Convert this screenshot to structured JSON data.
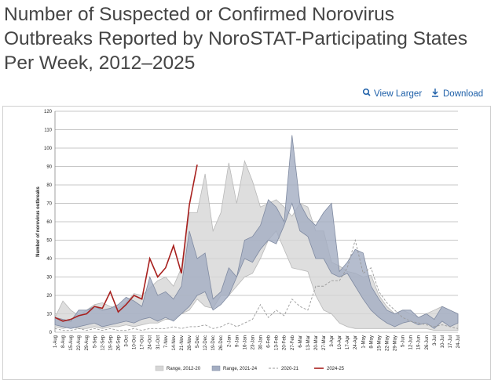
{
  "header": {
    "title": [
      "Number of Suspected or Confirmed Norovirus",
      "Outbreaks Reported by NoroSTAT-Participating States",
      "Per Week, 2012–2025"
    ],
    "links": [
      "View Larger",
      "Download"
    ]
  },
  "chart_data": {
    "type": "line",
    "y_label": "Number of norovirus outbreaks",
    "categories": [
      "1-Aug",
      "8-Aug",
      "15-Aug",
      "22-Aug",
      "29-Aug",
      "5-Sep",
      "12-Sep",
      "19-Sep",
      "26-Sep",
      "3-Oct",
      "10-Oct",
      "17-Oct",
      "24-Oct",
      "31-Oct",
      "7-Nov",
      "14-Nov",
      "21-Nov",
      "28-Nov",
      "5-Dec",
      "12-Dec",
      "19-Dec",
      "26-Dec",
      "2-Jan",
      "9-Jan",
      "16-Jan",
      "23-Jan",
      "30-Jan",
      "6-Feb",
      "13-Feb",
      "20-Feb",
      "27-Feb",
      "6-Mar",
      "13-Mar",
      "20-Mar",
      "27-Mar",
      "3-Apr",
      "10-Apr",
      "17-Apr",
      "24-Apr",
      "1-May",
      "8-May",
      "15-May",
      "22-May",
      "29-May",
      "5-Jun",
      "12-Jun",
      "19-Jun",
      "26-Jun",
      "3-Jul",
      "10-Jul",
      "17-Jul",
      "24-Jul"
    ],
    "ylim": [
      0,
      120
    ],
    "yticks": [
      0,
      10,
      20,
      30,
      40,
      50,
      60,
      70,
      80,
      90,
      100,
      110,
      120
    ],
    "grid": true,
    "ranges": [
      {
        "name": "Range, 2012-20",
        "color": "#d6d6d6",
        "high": [
          8,
          17,
          12,
          9,
          12,
          15,
          16,
          14,
          13,
          16,
          21,
          20,
          24,
          28,
          30,
          25,
          35,
          65,
          65,
          86,
          55,
          65,
          92,
          70,
          93,
          82,
          68,
          70,
          72,
          68,
          63,
          70,
          68,
          55,
          55,
          38,
          36,
          33,
          32,
          30,
          31,
          20,
          14,
          10,
          12,
          10,
          8,
          10,
          12,
          14,
          12,
          10
        ],
        "low": [
          3,
          2,
          3,
          2,
          2,
          3,
          2,
          3,
          3,
          4,
          3,
          4,
          5,
          5,
          7,
          7,
          10,
          12,
          18,
          14,
          13,
          20,
          20,
          25,
          30,
          32,
          40,
          50,
          55,
          45,
          35,
          34,
          33,
          20,
          12,
          10,
          5,
          3,
          2,
          2,
          2,
          2,
          2,
          2,
          2,
          2,
          2,
          2,
          1,
          1,
          1,
          1
        ]
      },
      {
        "name": "Range, 2021-24",
        "color": "#a3adc2",
        "high": [
          8,
          7,
          6,
          12,
          12,
          14,
          12,
          13,
          15,
          19,
          17,
          14,
          30,
          20,
          22,
          18,
          25,
          55,
          40,
          43,
          18,
          22,
          35,
          30,
          50,
          52,
          58,
          72,
          68,
          60,
          107,
          70,
          62,
          58,
          65,
          70,
          33,
          38,
          45,
          43,
          25,
          18,
          12,
          10,
          12,
          12,
          8,
          10,
          7,
          14,
          12,
          10
        ],
        "low": [
          4,
          3,
          2,
          3,
          4,
          5,
          3,
          4,
          5,
          6,
          5,
          7,
          8,
          6,
          8,
          6,
          10,
          14,
          20,
          22,
          12,
          15,
          20,
          30,
          40,
          38,
          45,
          50,
          48,
          58,
          70,
          55,
          52,
          40,
          40,
          32,
          30,
          32,
          25,
          18,
          12,
          8,
          5,
          3,
          5,
          6,
          4,
          5,
          2,
          6,
          3,
          5
        ]
      }
    ],
    "series": [
      {
        "name": "2020-21",
        "color": "#9a9a9a",
        "dashed": true,
        "values": [
          2,
          1,
          1,
          2,
          1,
          2,
          1,
          2,
          1,
          1,
          2,
          1,
          2,
          2,
          2,
          3,
          2,
          3,
          3,
          4,
          2,
          3,
          5,
          3,
          5,
          7,
          15,
          8,
          12,
          9,
          18,
          14,
          12,
          25,
          25,
          28,
          28,
          35,
          50,
          32,
          35,
          22,
          16,
          12,
          8,
          6,
          5,
          4,
          3,
          4,
          3,
          2
        ]
      },
      {
        "name": "2024-25",
        "color": "#a8201e",
        "dashed": false,
        "values": [
          8,
          6,
          7,
          9,
          10,
          14,
          13,
          22,
          11,
          15,
          20,
          18,
          40,
          30,
          35,
          47,
          32,
          69,
          91,
          null,
          null,
          null,
          null,
          null,
          null,
          null,
          null,
          null,
          null,
          null,
          null,
          null,
          null,
          null,
          null,
          null,
          null,
          null,
          null,
          null,
          null,
          null,
          null,
          null,
          null,
          null,
          null,
          null,
          null,
          null,
          null,
          null
        ]
      }
    ]
  }
}
